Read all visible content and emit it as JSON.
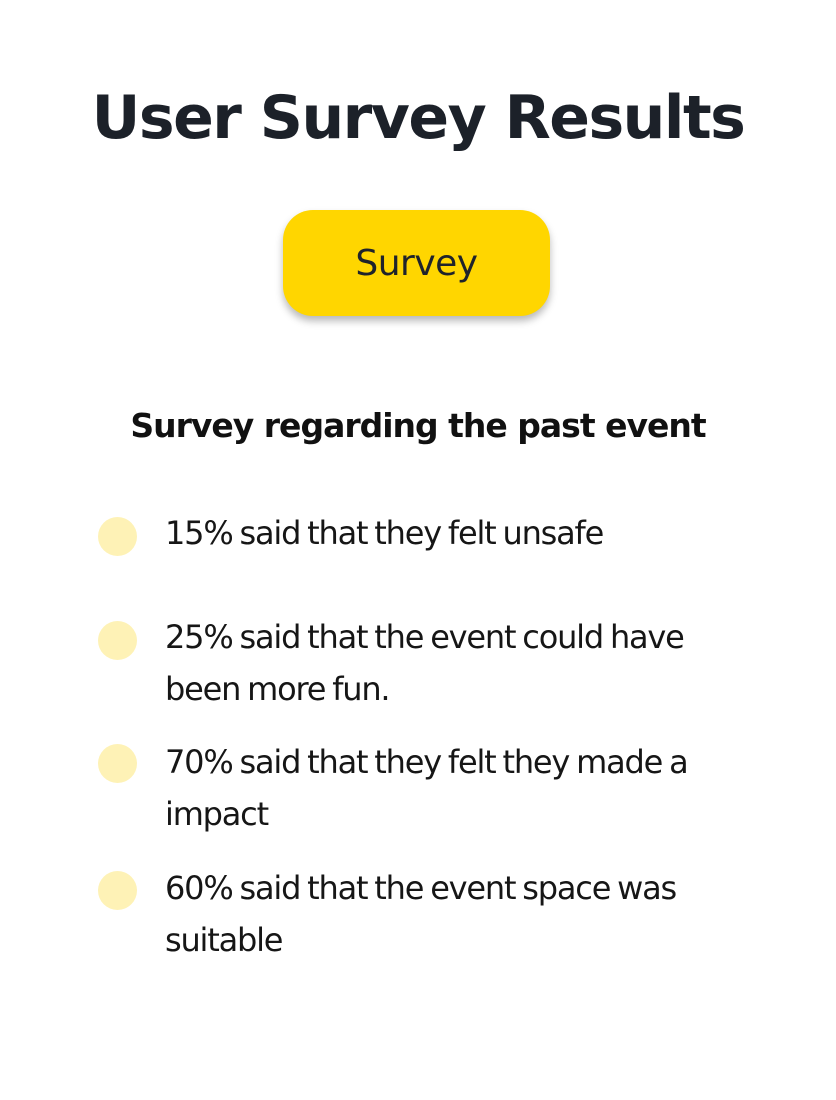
{
  "header": {
    "title": "User Survey Results"
  },
  "survey_button": {
    "label": "Survey"
  },
  "section": {
    "heading": "Survey regarding the past event"
  },
  "results": [
    {
      "text": "15% said that they felt unsafe"
    },
    {
      "text": "25% said that the event could have been more fun."
    },
    {
      "text": "70% said that they felt they made a impact"
    },
    {
      "text": "60% said that the event space was suitable"
    }
  ],
  "colors": {
    "accent": "#ffd600",
    "bullet": "#fef2b6",
    "title": "#1c2129"
  }
}
